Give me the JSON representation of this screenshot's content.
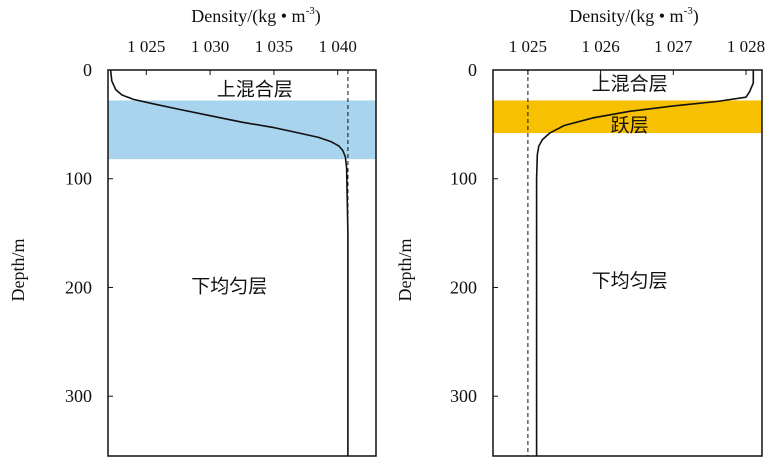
{
  "chart_data": [
    {
      "type": "line",
      "title": "Density/(kg • m",
      "title_sup": "-3",
      "title_close": ")",
      "xlabel": "Density/(kg • m-3)",
      "ylabel": "Depth/m",
      "xlim": [
        1022,
        1043
      ],
      "ylim": [
        0,
        355
      ],
      "x_ticks": [
        1025,
        1030,
        1035,
        1040
      ],
      "x_tick_labels": [
        "1 025",
        "1 030",
        "1 035",
        "1 040"
      ],
      "y_ticks": [
        0,
        100,
        200,
        300
      ],
      "y_tick_labels": [
        "0",
        "100",
        "200",
        "300"
      ],
      "band": {
        "from": 28,
        "to": 82,
        "color": "#a9d4ee"
      },
      "reference_line": {
        "x": 1040.8,
        "style": "dashed"
      },
      "series": [
        {
          "name": "density",
          "x": [
            1022.2,
            1022.3,
            1022.6,
            1023.1,
            1024.0,
            1025.5,
            1027.5,
            1030.0,
            1032.5,
            1035.0,
            1037.0,
            1038.5,
            1039.5,
            1040.1,
            1040.4,
            1040.6,
            1040.7,
            1040.8,
            1040.8
          ],
          "y": [
            0,
            10,
            18,
            23,
            27,
            31,
            36,
            42,
            48,
            53,
            58,
            62,
            66,
            70,
            74,
            80,
            90,
            150,
            355
          ]
        }
      ],
      "annotations": [
        {
          "text": "上混合层",
          "x": 1033.5,
          "y": 17
        },
        {
          "text": "下均匀层",
          "x": 1031.5,
          "y": 198
        }
      ]
    },
    {
      "type": "line",
      "title": "Density/(kg • m",
      "title_sup": "-3",
      "title_close": ")",
      "xlabel": "Density/(kg • m-3)",
      "ylabel": "Depth/m",
      "xlim": [
        1024.52,
        1028.22
      ],
      "ylim": [
        0,
        355
      ],
      "x_ticks": [
        1025,
        1026,
        1027,
        1028
      ],
      "x_tick_labels": [
        "1 025",
        "1 026",
        "1 027",
        "1 028"
      ],
      "y_ticks": [
        0,
        100,
        200,
        300
      ],
      "y_tick_labels": [
        "0",
        "100",
        "200",
        "300"
      ],
      "band": {
        "from": 28,
        "to": 58,
        "color": "#f7c000"
      },
      "reference_line": {
        "x": 1025.0,
        "style": "dashed"
      },
      "series": [
        {
          "name": "density",
          "x": [
            1028.1,
            1028.1,
            1028.05,
            1028.0,
            1027.6,
            1027.0,
            1026.4,
            1025.9,
            1025.5,
            1025.3,
            1025.2,
            1025.15,
            1025.13,
            1025.12,
            1025.12
          ],
          "y": [
            0,
            12,
            20,
            25,
            29,
            33,
            38,
            44,
            51,
            58,
            64,
            70,
            78,
            100,
            355
          ]
        }
      ],
      "annotations": [
        {
          "text": "上混合层",
          "x": 1026.4,
          "y": 12
        },
        {
          "text": "跃层",
          "x": 1026.4,
          "y": 50
        },
        {
          "text": "下均匀层",
          "x": 1026.4,
          "y": 193
        }
      ]
    }
  ]
}
